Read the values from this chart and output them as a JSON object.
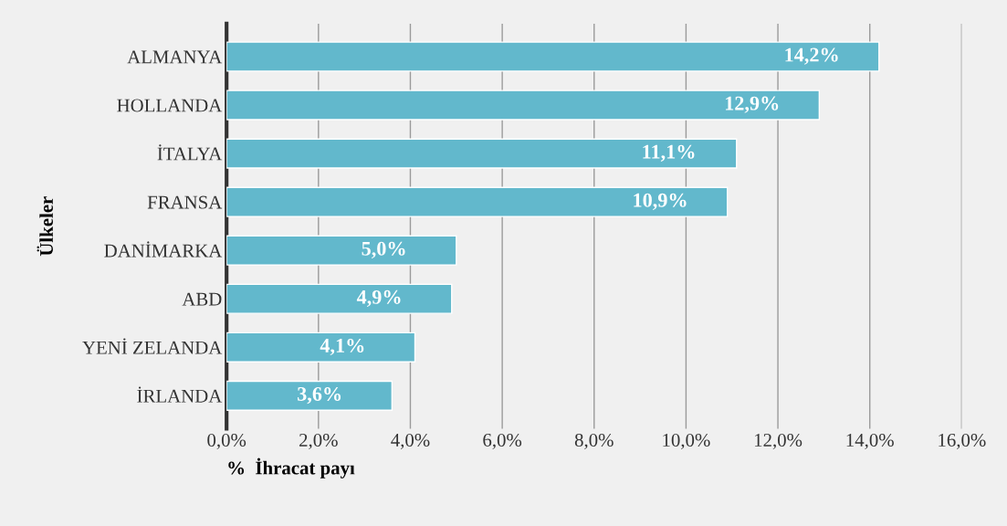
{
  "chart_data": {
    "type": "bar",
    "orientation": "horizontal",
    "categories": [
      "ALMANYA",
      "HOLLANDA",
      "İTALYA",
      "FRANSA",
      "DANİMARKA",
      "ABD",
      "YENİ ZELANDA",
      "İRLANDA"
    ],
    "values": [
      14.2,
      12.9,
      11.1,
      10.9,
      5.0,
      4.9,
      4.1,
      3.6
    ],
    "value_labels": [
      "14,2%",
      "12,9%",
      "11,1%",
      "10,9%",
      "5,0%",
      "4,9%",
      "4,1%",
      "3,6%"
    ],
    "color": "#62b8cc",
    "xlim": [
      0,
      16
    ],
    "xticks": [
      {
        "value": 0,
        "label": "0,0%"
      },
      {
        "value": 2,
        "label": "2,0%"
      },
      {
        "value": 4,
        "label": "4,0%"
      },
      {
        "value": 6,
        "label": "6,0%"
      },
      {
        "value": 8,
        "label": "8,0%"
      },
      {
        "value": 10,
        "label": "10,0%"
      },
      {
        "value": 12,
        "label": "12,0%"
      },
      {
        "value": 14,
        "label": "14,0%"
      },
      {
        "value": 16,
        "label": "16,0%"
      }
    ],
    "xlabel": "%  İhracat payı",
    "ylabel": "Ülkeler",
    "grid": "x",
    "legend": false
  }
}
